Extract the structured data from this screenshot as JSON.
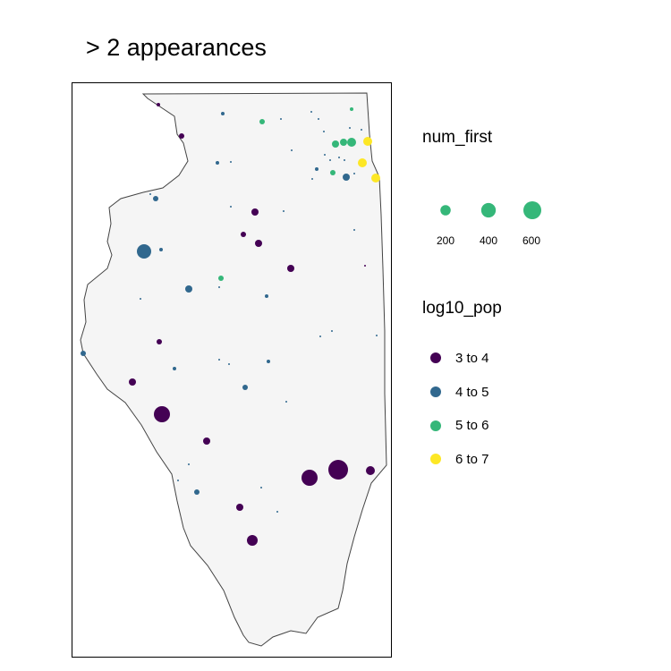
{
  "title": "> 2 appearances",
  "colors": {
    "state_fill": "#f5f5f5",
    "state_border": "#444444",
    "frame": "#000000"
  },
  "legend": {
    "size": {
      "title": "num_first",
      "color": "#35b779",
      "entries": [
        {
          "label": "200",
          "value": 200
        },
        {
          "label": "400",
          "value": 400
        },
        {
          "label": "600",
          "value": 600
        }
      ]
    },
    "color": {
      "title": "log10_pop",
      "entries": [
        {
          "label": "3 to 4",
          "color": "#440154"
        },
        {
          "label": "4 to 5",
          "color": "#31688e"
        },
        {
          "label": "5 to 6",
          "color": "#35b779"
        },
        {
          "label": "6 to 7",
          "color": "#fde725"
        }
      ]
    }
  }
}
